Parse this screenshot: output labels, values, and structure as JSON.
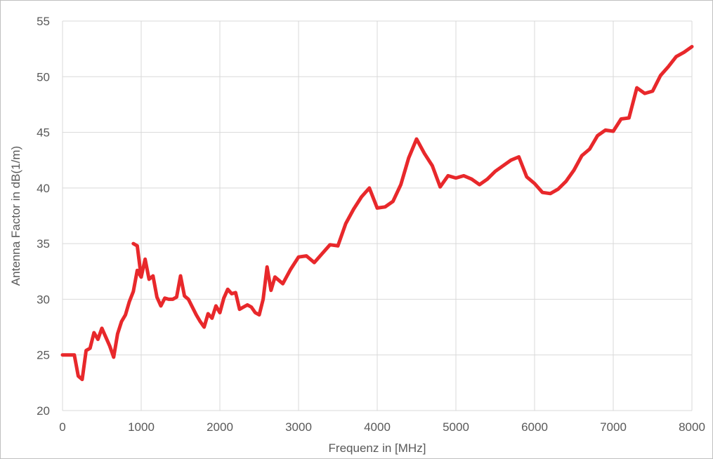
{
  "chart_data": {
    "type": "line",
    "title": "",
    "xlabel": "Frequenz in [MHz]",
    "ylabel": "Antenna Factor in dB(1/m)",
    "xlim": [
      0,
      8000
    ],
    "ylim": [
      20,
      55
    ],
    "xticks": [
      0,
      1000,
      2000,
      3000,
      4000,
      5000,
      6000,
      7000,
      8000
    ],
    "yticks": [
      20,
      25,
      30,
      35,
      40,
      45,
      50,
      55
    ],
    "grid": true,
    "legend": "none",
    "colors": {
      "series": "#e8282b",
      "grid": "#d9d9d9",
      "text": "#595959"
    },
    "series": [
      {
        "x": [
          0,
          150,
          200,
          250,
          300,
          350,
          400,
          450,
          500,
          550,
          600,
          650,
          700,
          750,
          800,
          850,
          900,
          950,
          1000,
          1050,
          1100,
          1150,
          1200,
          1250,
          1300,
          1350,
          1400,
          1450,
          1500,
          1550,
          1600,
          1650,
          1700,
          1750,
          1800,
          1850,
          1900,
          1950,
          2000,
          2050,
          2100,
          2150,
          2200,
          2250,
          2300,
          2350,
          2400,
          2450,
          2500,
          2550,
          2600,
          2650,
          2700,
          2800,
          2900,
          3000,
          3100,
          3200,
          3300,
          3400,
          3500,
          3600,
          3700,
          3800,
          3900,
          4000,
          4100,
          4200,
          4300,
          4400,
          4500,
          4600,
          4700,
          4800,
          4900,
          5000,
          5100,
          5200,
          5300,
          5400,
          5500,
          5600,
          5700,
          5800,
          5900,
          6000,
          6100,
          6200,
          6300,
          6400,
          6500,
          6600,
          6700,
          6800,
          6900,
          7000,
          7100,
          7200,
          7300,
          7400,
          7500,
          7600,
          7700,
          7800,
          7900,
          8000
        ],
        "y": [
          25.0,
          25.0,
          23.1,
          22.8,
          25.4,
          25.6,
          27.0,
          26.4,
          27.4,
          26.6,
          25.8,
          24.8,
          26.9,
          28.0,
          28.6,
          29.8,
          30.7,
          32.6,
          32.0,
          33.6,
          31.8,
          32.1,
          30.2,
          29.4,
          30.1,
          30.0,
          30.0,
          30.2,
          32.1,
          30.3,
          30.0,
          29.3,
          28.6,
          28.0,
          27.5,
          28.7,
          28.3,
          29.4,
          28.8,
          30.1,
          30.9,
          30.5,
          30.6,
          29.1,
          29.3,
          29.5,
          29.3,
          28.8,
          28.6,
          30.0,
          32.9,
          30.8,
          32.0,
          31.4,
          32.7,
          33.8,
          33.9,
          33.3,
          34.1,
          34.9,
          34.8,
          36.8,
          38.1,
          39.2,
          40.0,
          38.2,
          38.3,
          38.8,
          40.3,
          42.7,
          44.4,
          43.1,
          42.0,
          40.1,
          41.1,
          40.9,
          41.1,
          40.8,
          40.3,
          40.8,
          41.5,
          42.0,
          42.5,
          42.8,
          41.0,
          40.4,
          39.6,
          39.5,
          39.9,
          40.6,
          41.6,
          42.9,
          43.5,
          44.7,
          45.2,
          45.1,
          46.2,
          46.3,
          49.0,
          48.5,
          48.7,
          50.1,
          50.9,
          51.8,
          52.2,
          52.7
        ]
      },
      {
        "x": [
          900,
          950,
          1000
        ],
        "y": [
          35.0,
          34.8,
          32.0
        ]
      }
    ]
  }
}
